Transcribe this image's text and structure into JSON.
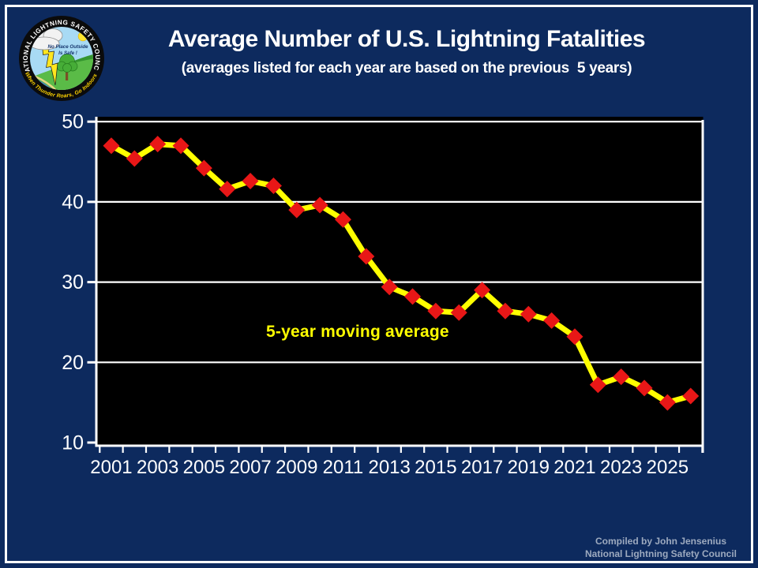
{
  "header": {
    "title": "Average Number of U.S. Lightning Fatalities",
    "subtitle": "(averages listed for each year are based on the previous  5 years)"
  },
  "logo": {
    "arc_top": "NATIONAL LIGHTNING SAFETY COUNCIL",
    "arc_bottom": "When Thunder Roars, Go Indoors!",
    "inner_line1": "No Place Outside",
    "inner_line2": "Is Safe !"
  },
  "annotation": {
    "label": "5-year moving average"
  },
  "footer": {
    "line1": "Compiled by John Jensenius",
    "line2": "National Lightning Safety Council"
  },
  "colors": {
    "background": "#0d2a5e",
    "frame_border": "#ffffff",
    "plot_background": "#000000",
    "grid": "#ffffff",
    "axis": "#ffffff",
    "tick_label": "#ffffff",
    "line": "#ffff00",
    "marker": "#e81717",
    "annotation": "#ffff00",
    "title": "#ffffff",
    "footer_text": "#9daabf"
  },
  "chart_data": {
    "type": "line",
    "title": "Average Number of U.S. Lightning Fatalities",
    "subtitle": "(averages listed for each year are based on the previous 5 years)",
    "series_name": "5-year moving average",
    "x": [
      2001,
      2002,
      2003,
      2004,
      2005,
      2006,
      2007,
      2008,
      2009,
      2010,
      2011,
      2012,
      2013,
      2014,
      2015,
      2016,
      2017,
      2018,
      2019,
      2020,
      2021,
      2022,
      2023,
      2024,
      2025,
      2026
    ],
    "values": [
      47.0,
      45.4,
      47.2,
      47.0,
      44.2,
      41.6,
      42.6,
      42.0,
      39.0,
      39.6,
      37.8,
      33.2,
      29.4,
      28.2,
      26.4,
      26.2,
      29.0,
      26.4,
      26.0,
      25.2,
      23.2,
      17.2,
      18.2,
      16.8,
      15.0,
      15.8
    ],
    "ylim": [
      10,
      50
    ],
    "yticks": [
      10,
      20,
      30,
      40,
      50
    ],
    "xtick_label_years": [
      2001,
      2003,
      2005,
      2007,
      2009,
      2011,
      2013,
      2015,
      2017,
      2019,
      2021,
      2023,
      2025
    ],
    "xlabel": "",
    "ylabel": "",
    "grid": "horizontal",
    "legend_position": "none (inline yellow annotation inside plot)",
    "plot_background": "#000000",
    "line_color": "#ffff00",
    "marker": "diamond",
    "marker_color": "#e81717"
  }
}
